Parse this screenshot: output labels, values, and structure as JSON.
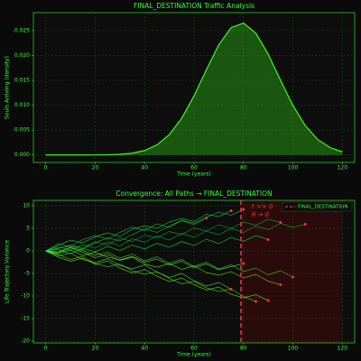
{
  "chart_data": [
    {
      "type": "area",
      "title": "FINAL_DESTINATION Traffic Analysis",
      "xlabel": "Time (years)",
      "ylabel": "Souls Arriving (density)",
      "x": [
        0,
        5,
        10,
        15,
        20,
        25,
        30,
        35,
        40,
        45,
        50,
        55,
        60,
        65,
        70,
        75,
        80,
        85,
        90,
        95,
        100,
        105,
        110,
        115,
        120
      ],
      "values": [
        0,
        0,
        0,
        0,
        1e-05,
        4e-05,
        0.00013,
        0.00036,
        0.0009,
        0.00203,
        0.00409,
        0.00737,
        0.01188,
        0.01714,
        0.02213,
        0.02557,
        0.0265,
        0.02446,
        0.02025,
        0.015,
        0.00995,
        0.0059,
        0.00313,
        0.00149,
        0.00063
      ],
      "color": "#39ff14",
      "xlim": [
        -5,
        125
      ],
      "ylim": [
        -0.0015,
        0.0286
      ],
      "xticks": [
        0,
        20,
        40,
        60,
        80,
        100,
        120
      ],
      "yticks": [
        {
          "value": 0,
          "label": "0.000"
        },
        {
          "value": 0.005,
          "label": "0.005"
        },
        {
          "value": 0.01,
          "label": "0.010"
        },
        {
          "value": 0.015,
          "label": "0.015"
        },
        {
          "value": 0.02,
          "label": "0.020"
        },
        {
          "value": 0.025,
          "label": "0.025"
        }
      ],
      "grid": true
    },
    {
      "type": "line",
      "title": "Convergence: All Paths → FINAL_DESTINATION",
      "xlabel": "Time (years)",
      "ylabel": "Life Trajectory Variance",
      "x": [
        0,
        5,
        10,
        15,
        20,
        25,
        30,
        35,
        40,
        45,
        50,
        55,
        60,
        65,
        70,
        75,
        80,
        85,
        90,
        95,
        100,
        105
      ],
      "series": [
        {
          "color": "#00ff41",
          "values": [
            0,
            1.2,
            2.4,
            1.8,
            3.1,
            4.0,
            3.2,
            4.8,
            5.6,
            5.0,
            6.4,
            7.2,
            6.5,
            8.1,
            7.6,
            8.9,
            null,
            null,
            null,
            null,
            null,
            null
          ]
        },
        {
          "color": "#39ff14",
          "values": [
            0,
            -0.8,
            -1.9,
            -1.2,
            -2.8,
            -3.5,
            -2.9,
            -4.4,
            -5.2,
            -4.6,
            -6.1,
            -7.3,
            -6.8,
            -8.2,
            -9.0,
            -8.4,
            -10.1,
            -11.2,
            null,
            null,
            null,
            null
          ]
        },
        {
          "color": "#2ecc40",
          "values": [
            0,
            0.6,
            1.1,
            0.4,
            1.8,
            2.9,
            2.2,
            3.6,
            4.9,
            4.1,
            5.5,
            6.8,
            6.1,
            7.4,
            8.6,
            7.9,
            9.2,
            null,
            null,
            null,
            null,
            null
          ]
        },
        {
          "color": "#7fff00",
          "values": [
            0,
            -0.4,
            0.7,
            -0.3,
            -1.5,
            -0.8,
            -2.1,
            -1.4,
            -2.9,
            -3.6,
            -2.8,
            -4.1,
            -3.3,
            -4.8,
            -5.4,
            -4.6,
            -6.0,
            -5.2,
            -6.7,
            -7.5,
            null,
            null
          ]
        },
        {
          "color": "#00cc33",
          "values": [
            0,
            0.9,
            0.2,
            1.4,
            0.6,
            2.0,
            1.1,
            2.7,
            1.9,
            3.3,
            2.4,
            3.9,
            3.0,
            4.4,
            3.6,
            5.0,
            4.1,
            5.5,
            4.7,
            6.1,
            5.2,
            5.9
          ]
        },
        {
          "color": "#66ff66",
          "values": [
            0,
            -1.1,
            -0.5,
            -1.9,
            -2.6,
            -1.7,
            -3.2,
            -4.0,
            -3.1,
            -4.7,
            -5.9,
            -5.0,
            -6.6,
            -7.8,
            -7.0,
            -8.5,
            null,
            null,
            null,
            null,
            null,
            null
          ]
        },
        {
          "color": "#00ff41",
          "values": [
            0,
            0.3,
            -0.6,
            0.5,
            -0.2,
            1.0,
            0.1,
            1.3,
            0.4,
            1.7,
            0.8,
            2.1,
            1.2,
            2.6,
            1.6,
            3.0,
            2.1,
            3.4,
            2.5,
            null,
            null,
            null
          ]
        },
        {
          "color": "#39ff14",
          "values": [
            0,
            -0.2,
            0.8,
            0.1,
            -1.0,
            -0.3,
            -1.6,
            -0.7,
            -2.2,
            -1.3,
            -2.7,
            -1.9,
            -3.4,
            -2.5,
            -4.0,
            -3.1,
            -4.6,
            -3.8,
            -5.3,
            -4.4,
            -5.8,
            null
          ]
        },
        {
          "color": "#2ecc40",
          "values": [
            0,
            1.6,
            0.9,
            2.5,
            3.4,
            2.6,
            4.1,
            5.3,
            4.5,
            6.0,
            5.2,
            6.7,
            5.8,
            7.3,
            null,
            null,
            null,
            null,
            null,
            null,
            null,
            null
          ]
        },
        {
          "color": "#7fff00",
          "values": [
            0,
            -1.4,
            -2.3,
            -1.6,
            -3.0,
            -2.2,
            -3.8,
            -4.9,
            -4.1,
            -5.6,
            -6.8,
            -6.0,
            -7.5,
            -8.7,
            -8.0,
            -9.6,
            -10.4,
            -9.7,
            -11.0,
            null,
            null,
            null
          ]
        },
        {
          "color": "#00cc33",
          "values": [
            0,
            0.5,
            1.3,
            0.7,
            2.0,
            1.4,
            2.8,
            2.1,
            3.5,
            2.9,
            4.3,
            3.6,
            5.1,
            4.4,
            5.8,
            5.0,
            6.4,
            5.7,
            7.0,
            6.3,
            null,
            null
          ]
        },
        {
          "color": "#66ff66",
          "values": [
            0,
            -0.6,
            0.2,
            -1.0,
            -0.3,
            -1.4,
            -2.0,
            -1.2,
            -2.5,
            -1.8,
            -3.1,
            -2.3,
            -3.7,
            -2.9,
            -4.2,
            -3.5,
            -2.8,
            null,
            null,
            null,
            null,
            null
          ]
        }
      ],
      "endpoint_color": "#ff3333",
      "xlim": [
        -5,
        125
      ],
      "ylim": [
        -20.4,
        11.2
      ],
      "xticks": [
        0,
        20,
        40,
        60,
        80,
        100,
        120
      ],
      "yticks": [
        -20,
        -15,
        -10,
        -5,
        0,
        5,
        10
      ],
      "grid": true,
      "vline": {
        "x": 79,
        "label": "FINAL_DESTINATION",
        "color": "#ff3333"
      },
      "span": [
        79,
        120
      ],
      "annotations": [
        "t >> 0",
        "θ → 0"
      ],
      "legend": "upper right"
    }
  ]
}
